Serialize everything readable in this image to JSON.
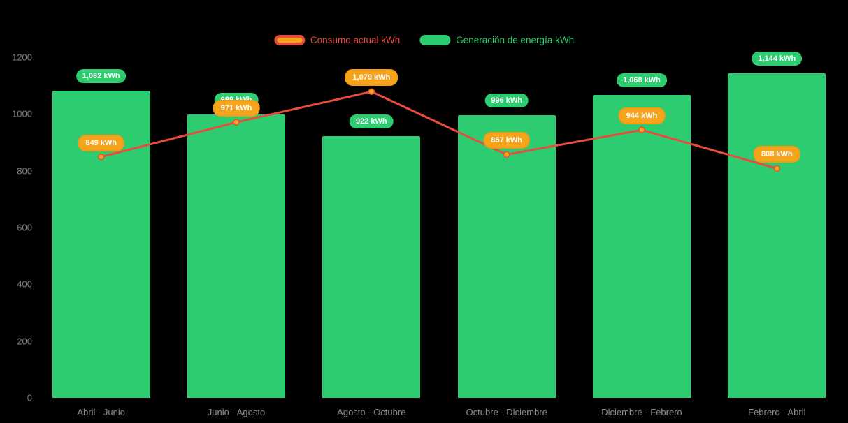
{
  "colors": {
    "background": "#000000",
    "axis_text": "#7f7f7f",
    "category_text": "#8d8d8d",
    "badge_text": "#ffffff"
  },
  "chart_data": {
    "type": "bar",
    "title": "",
    "xlabel": "",
    "ylabel": "",
    "ylim": [
      0,
      1200
    ],
    "yticks": [
      0,
      200,
      400,
      600,
      800,
      1000,
      1200
    ],
    "grid": false,
    "legend_position": "top",
    "categories": [
      "Abril - Junio",
      "Junio - Agosto",
      "Agosto - Octubre",
      "Octubre - Diciembre",
      "Diciembre - Febrero",
      "Febrero - Abril"
    ],
    "series": [
      {
        "name": "Generación de energía kWh",
        "kind": "bar",
        "color": "#2ECC71",
        "values": [
          1082,
          999,
          922,
          996,
          1068,
          1144
        ],
        "value_labels": [
          "1,082 kWh",
          "999 kWh",
          "922 kWh",
          "996 kWh",
          "1,068 kWh",
          "1,144 kWh"
        ]
      },
      {
        "name": "Consumo actual kWh",
        "kind": "line",
        "line_color": "#E74C3C",
        "marker_color": "#F6A41C",
        "badge_color": "#F6A41C",
        "badge_border": "#F39C12",
        "values": [
          849,
          971,
          1079,
          857,
          944,
          808
        ],
        "value_labels": [
          "849 kWh",
          "971 kWh",
          "1,079 kWh",
          "857 kWh",
          "944 kWh",
          "808 kWh"
        ]
      }
    ],
    "legend": [
      {
        "label": "Consumo actual kWh",
        "swatch_fill": "#F6A41C",
        "swatch_border": "#E74C3C",
        "text_color": "#E74C3C"
      },
      {
        "label": "Generación de energía kWh",
        "swatch_fill": "#2ECC71",
        "swatch_border": "#2ECC71",
        "text_color": "#2ECC71"
      }
    ]
  }
}
